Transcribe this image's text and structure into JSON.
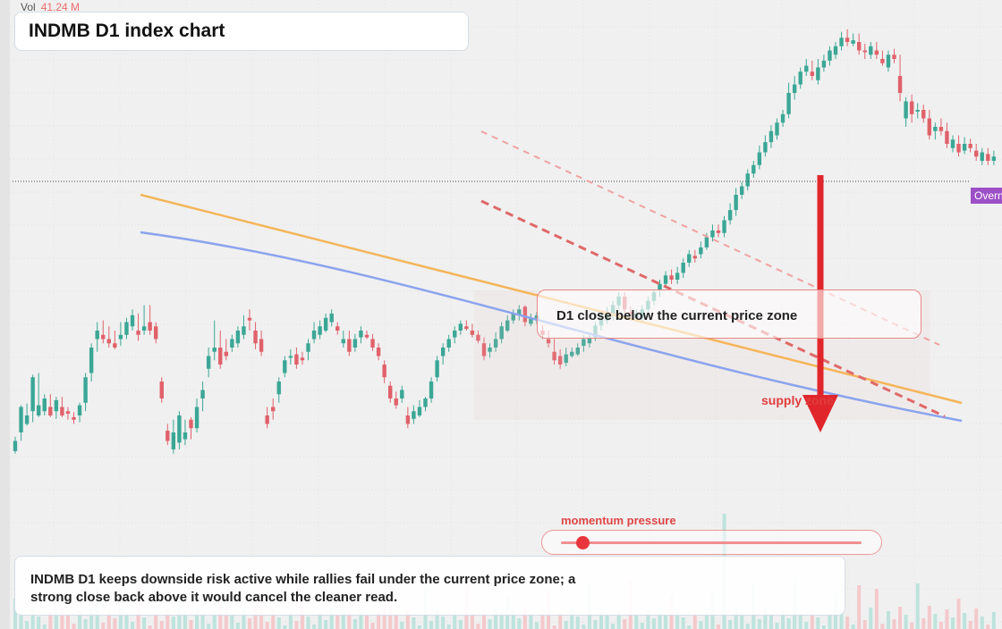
{
  "title": "INDMB D1 index chart",
  "volume": {
    "label": "Vol",
    "value": "41.24 M"
  },
  "zone_label": "D1 close below the current price zone",
  "supply_label": "supply zone",
  "momentum": {
    "label": "momentum pressure",
    "level": 0.07
  },
  "summary": "INDMB D1 keeps downside risk active while rallies fail under the current price zone; a strong close back above it would cancel the cleaner read.",
  "price_tag": "Overnight",
  "colors": {
    "bull": "#3aa795",
    "bear": "#e0616a",
    "arrow": "#e0262b",
    "orange_line": "#f5b55a",
    "blue_line": "#8aa3ee",
    "tag": "#9c4fc7"
  },
  "chart_data": {
    "type": "candlestick",
    "symbol": "INDMB",
    "timeframe": "D1",
    "candles": [
      [
        610,
        458,
        470,
        455,
        475
      ],
      [
        470,
        480,
        510,
        470,
        512
      ],
      [
        510,
        490,
        500,
        488,
        514
      ],
      [
        500,
        505,
        545,
        492,
        548
      ],
      [
        545,
        500,
        512,
        498,
        550
      ],
      [
        512,
        505,
        520,
        500,
        525
      ],
      [
        520,
        510,
        500,
        498,
        525
      ],
      [
        500,
        505,
        518,
        496,
        522
      ],
      [
        518,
        510,
        500,
        498,
        522
      ],
      [
        500,
        505,
        502,
        495,
        510
      ],
      [
        502,
        498,
        495,
        490,
        504
      ],
      [
        495,
        500,
        512,
        492,
        515
      ],
      [
        512,
        515,
        545,
        505,
        550
      ],
      [
        545,
        550,
        580,
        540,
        585
      ],
      [
        580,
        590,
        600,
        575,
        610
      ],
      [
        600,
        595,
        590,
        585,
        612
      ],
      [
        590,
        590,
        585,
        580,
        605
      ],
      [
        585,
        585,
        580,
        578,
        600
      ],
      [
        580,
        590,
        595,
        582,
        610
      ],
      [
        595,
        595,
        610,
        590,
        615
      ],
      [
        610,
        605,
        618,
        600,
        625
      ],
      [
        618,
        600,
        595,
        588,
        620
      ],
      [
        595,
        600,
        605,
        595,
        630
      ],
      [
        605,
        610,
        600,
        595,
        630
      ],
      [
        600,
        605,
        590,
        585,
        610
      ],
      [
        590,
        540,
        520,
        515,
        545
      ],
      [
        520,
        482,
        470,
        465,
        490
      ],
      [
        470,
        460,
        480,
        455,
        495
      ],
      [
        480,
        468,
        500,
        460,
        505
      ],
      [
        500,
        472,
        480,
        465,
        495
      ],
      [
        480,
        495,
        485,
        472,
        498
      ],
      [
        485,
        485,
        510,
        480,
        520
      ],
      [
        510,
        520,
        530,
        505,
        540
      ],
      [
        530,
        555,
        570,
        545,
        580
      ],
      [
        570,
        575,
        580,
        565,
        612
      ],
      [
        580,
        580,
        560,
        555,
        600
      ],
      [
        560,
        575,
        570,
        565,
        590
      ],
      [
        570,
        580,
        590,
        575,
        595
      ],
      [
        590,
        585,
        600,
        580,
        605
      ],
      [
        600,
        595,
        605,
        590,
        618
      ],
      [
        605,
        615,
        612,
        600,
        625
      ],
      [
        612,
        600,
        585,
        578,
        610
      ],
      [
        585,
        590,
        575,
        570,
        600
      ],
      [
        575,
        500,
        490,
        485,
        510
      ],
      [
        490,
        510,
        505,
        495,
        520
      ],
      [
        505,
        525,
        540,
        515,
        545
      ],
      [
        540,
        550,
        565,
        545,
        570
      ],
      [
        565,
        568,
        570,
        560,
        578
      ],
      [
        570,
        572,
        560,
        555,
        580
      ],
      [
        560,
        568,
        565,
        560,
        575
      ],
      [
        565,
        575,
        585,
        565,
        590
      ],
      [
        585,
        590,
        600,
        585,
        610
      ],
      [
        600,
        595,
        605,
        590,
        612
      ],
      [
        605,
        600,
        615,
        598,
        620
      ],
      [
        615,
        610,
        620,
        605,
        625
      ],
      [
        620,
        605,
        600,
        595,
        610
      ],
      [
        600,
        585,
        590,
        580,
        600
      ],
      [
        590,
        590,
        575,
        570,
        600
      ],
      [
        575,
        580,
        590,
        575,
        596
      ],
      [
        590,
        592,
        600,
        585,
        605
      ],
      [
        600,
        595,
        592,
        590,
        600
      ],
      [
        592,
        590,
        580,
        576,
        596
      ],
      [
        580,
        580,
        570,
        565,
        585
      ],
      [
        570,
        560,
        545,
        538,
        565
      ],
      [
        545,
        535,
        520,
        515,
        540
      ],
      [
        520,
        520,
        512,
        508,
        528
      ],
      [
        512,
        520,
        530,
        515,
        535
      ],
      [
        530,
        500,
        490,
        485,
        510
      ],
      [
        490,
        496,
        505,
        490,
        512
      ],
      [
        505,
        500,
        510,
        498,
        518
      ],
      [
        510,
        510,
        520,
        505,
        522
      ],
      [
        520,
        520,
        540,
        515,
        545
      ],
      [
        540,
        545,
        565,
        540,
        570
      ],
      [
        565,
        570,
        580,
        560,
        585
      ],
      [
        580,
        580,
        590,
        575,
        595
      ],
      [
        590,
        592,
        600,
        585,
        605
      ],
      [
        600,
        600,
        608,
        595,
        612
      ],
      [
        608,
        605,
        602,
        600,
        612
      ],
      [
        602,
        600,
        595,
        592,
        608
      ],
      [
        595,
        595,
        588,
        585,
        600
      ],
      [
        588,
        585,
        570,
        565,
        592
      ],
      [
        570,
        575,
        580,
        568,
        585
      ],
      [
        580,
        580,
        590,
        575,
        598
      ],
      [
        590,
        590,
        605,
        585,
        610
      ],
      [
        605,
        600,
        612,
        598,
        618
      ],
      [
        612,
        612,
        620,
        608,
        625
      ],
      [
        620,
        618,
        625,
        612,
        630
      ],
      [
        625,
        628,
        610,
        605,
        630
      ],
      [
        610,
        608,
        615,
        605,
        620
      ],
      [
        615,
        612,
        618,
        608,
        622
      ],
      [
        618,
        600,
        595,
        590,
        606
      ],
      [
        595,
        590,
        585,
        580,
        600
      ],
      [
        585,
        575,
        565,
        560,
        590
      ],
      [
        565,
        570,
        560,
        555,
        578
      ],
      [
        560,
        562,
        572,
        558,
        580
      ],
      [
        572,
        570,
        575,
        568,
        580
      ],
      [
        575,
        572,
        580,
        570,
        585
      ],
      [
        580,
        582,
        590,
        575,
        595
      ],
      [
        590,
        585,
        592,
        580,
        598
      ],
      [
        592,
        592,
        606,
        588,
        610
      ],
      [
        606,
        606,
        615,
        600,
        620
      ],
      [
        615,
        612,
        622,
        608,
        628
      ],
      [
        622,
        618,
        630,
        612,
        635
      ],
      [
        630,
        630,
        640,
        625,
        645
      ],
      [
        640,
        640,
        625,
        620,
        645
      ],
      [
        625,
        622,
        618,
        615,
        628
      ],
      [
        618,
        615,
        620,
        612,
        625
      ],
      [
        620,
        615,
        625,
        610,
        630
      ],
      [
        625,
        625,
        635,
        620,
        640
      ],
      [
        635,
        635,
        645,
        630,
        648
      ],
      [
        645,
        648,
        655,
        640,
        660
      ],
      [
        655,
        655,
        665,
        650,
        670
      ],
      [
        665,
        665,
        660,
        655,
        672
      ],
      [
        660,
        660,
        668,
        655,
        675
      ],
      [
        668,
        668,
        680,
        662,
        685
      ],
      [
        680,
        680,
        690,
        675,
        695
      ],
      [
        690,
        688,
        685,
        680,
        695
      ],
      [
        685,
        690,
        698,
        685,
        705
      ],
      [
        698,
        698,
        710,
        695,
        715
      ],
      [
        710,
        710,
        718,
        705,
        725
      ],
      [
        718,
        718,
        715,
        710,
        725
      ],
      [
        715,
        715,
        730,
        710,
        735
      ],
      [
        730,
        730,
        742,
        725,
        750
      ],
      [
        742,
        742,
        760,
        735,
        768
      ],
      [
        760,
        760,
        770,
        755,
        775
      ],
      [
        770,
        770,
        785,
        765,
        790
      ],
      [
        785,
        785,
        795,
        780,
        800
      ],
      [
        795,
        795,
        810,
        790,
        818
      ],
      [
        810,
        810,
        822,
        805,
        830
      ],
      [
        822,
        822,
        835,
        815,
        842
      ],
      [
        835,
        830,
        845,
        825,
        850
      ],
      [
        845,
        845,
        855,
        840,
        860
      ],
      [
        855,
        855,
        880,
        850,
        892
      ],
      [
        880,
        880,
        890,
        872,
        900
      ],
      [
        890,
        890,
        905,
        885,
        910
      ],
      [
        905,
        905,
        912,
        900,
        920
      ],
      [
        912,
        905,
        900,
        895,
        918
      ],
      [
        900,
        895,
        910,
        890,
        920
      ],
      [
        910,
        910,
        918,
        905,
        925
      ],
      [
        918,
        918,
        930,
        912,
        935
      ],
      [
        930,
        925,
        935,
        920,
        940
      ],
      [
        935,
        935,
        945,
        930,
        952
      ],
      [
        945,
        945,
        940,
        935,
        955
      ],
      [
        940,
        938,
        942,
        935,
        950
      ],
      [
        942,
        940,
        930,
        925,
        950
      ],
      [
        930,
        930,
        928,
        920,
        938
      ],
      [
        928,
        925,
        935,
        920,
        940
      ],
      [
        935,
        930,
        925,
        920,
        940
      ],
      [
        925,
        920,
        915,
        912,
        930
      ],
      [
        915,
        910,
        925,
        905,
        930
      ],
      [
        925,
        925,
        920,
        915,
        932
      ],
      [
        920,
        900,
        880,
        870,
        925
      ],
      [
        880,
        850,
        870,
        840,
        875
      ],
      [
        870,
        870,
        855,
        845,
        878
      ],
      [
        855,
        858,
        860,
        850,
        868
      ],
      [
        860,
        860,
        850,
        845,
        866
      ],
      [
        850,
        850,
        830,
        825,
        860
      ],
      [
        830,
        835,
        840,
        825,
        845
      ],
      [
        840,
        840,
        835,
        830,
        850
      ],
      [
        835,
        835,
        820,
        815,
        845
      ],
      [
        820,
        815,
        825,
        810,
        830
      ],
      [
        825,
        820,
        810,
        805,
        830
      ],
      [
        810,
        812,
        820,
        808,
        828
      ],
      [
        820,
        820,
        815,
        810,
        826
      ],
      [
        815,
        812,
        805,
        800,
        820
      ],
      [
        805,
        800,
        810,
        795,
        815
      ],
      [
        810,
        808,
        800,
        795,
        815
      ],
      [
        800,
        800,
        805,
        795,
        812
      ]
    ]
  }
}
